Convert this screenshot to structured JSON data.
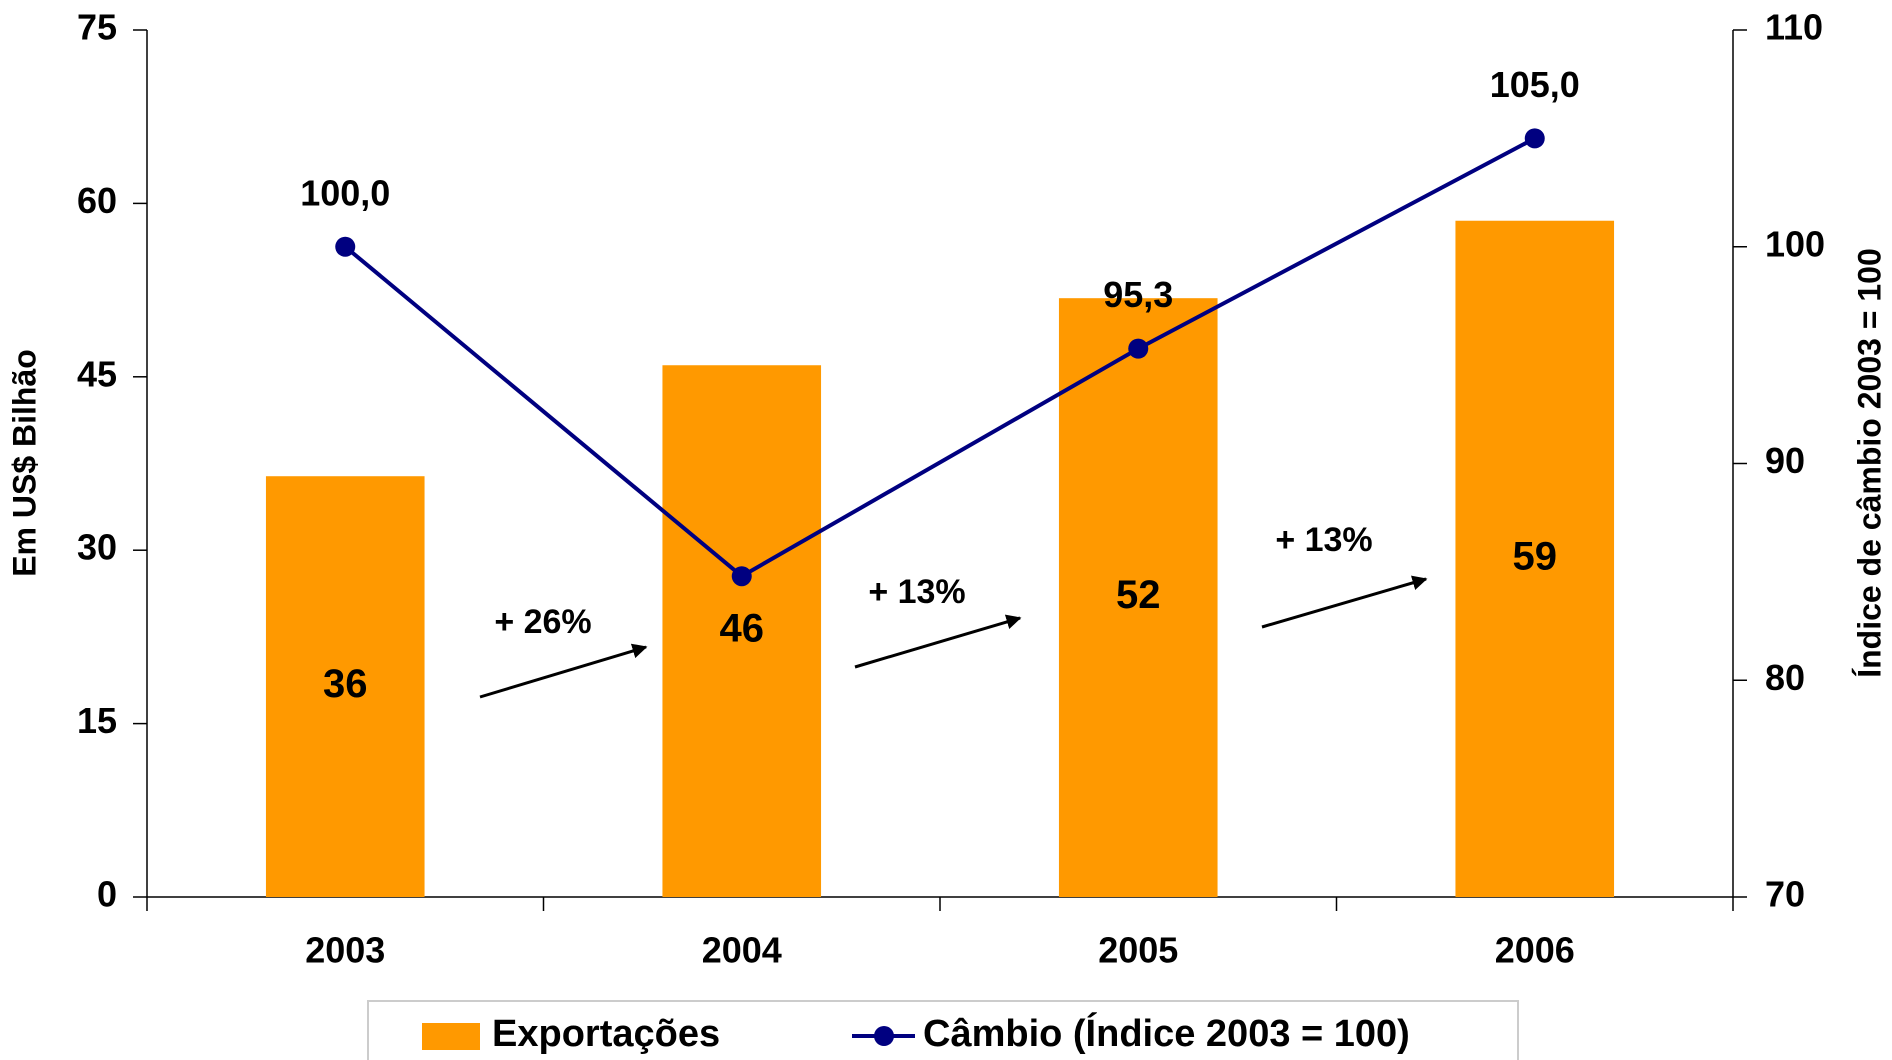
{
  "chart_data": {
    "type": "bar_line",
    "categories": [
      "2003",
      "2004",
      "2005",
      "2006"
    ],
    "series": [
      {
        "name": "Exportações",
        "type": "bar",
        "color": "#ff9900",
        "values": [
          36.4,
          46,
          51.8,
          58.5
        ],
        "value_labels": [
          "36",
          "46",
          "52",
          "59"
        ]
      },
      {
        "name": "Câmbio (Índice 2003 = 100)",
        "type": "line",
        "axis": "y2",
        "color": "#000080",
        "values": [
          100,
          84.8,
          95.3,
          105
        ],
        "value_labels": [
          "100,0",
          null,
          "95,3",
          "105,0"
        ]
      }
    ],
    "ylabel": "Em US$ Bilhão",
    "y2label": "Índice de câmbio 2003 = 100",
    "ylim": [
      0,
      75
    ],
    "yticks": [
      0,
      15,
      30,
      45,
      60,
      75
    ],
    "y2lim": [
      70,
      110
    ],
    "y2ticks": [
      70,
      80,
      90,
      100,
      110
    ],
    "annotations": [
      {
        "text": "+ 26%"
      },
      {
        "text": "+ 13%"
      },
      {
        "text": "+ 13%"
      }
    ],
    "legend": "bottom"
  }
}
